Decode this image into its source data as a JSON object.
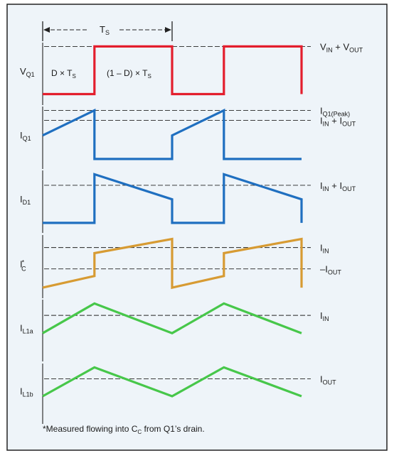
{
  "colors": {
    "background": "#eef4f9",
    "frame": "#222222",
    "vq1": "#e31e2d",
    "iq1": "#1f6fc0",
    "id1": "#1f6fc0",
    "icc": "#d79b33",
    "il1a": "#47c74a",
    "il1b": "#47c74a",
    "refline": "#222222"
  },
  "period": {
    "label": "T",
    "sub": "S"
  },
  "intervals": [
    {
      "pre": "D × T",
      "sub": "S"
    },
    {
      "pre": "(1 – D) × T",
      "sub": "S"
    }
  ],
  "footnote": {
    "pre": "*Measured flowing into C",
    "sub": "C",
    "post": " from Q1’s drain."
  },
  "panels": [
    {
      "key": "vq1",
      "label": {
        "main": "V",
        "sub": "Q1"
      },
      "refs": [
        {
          "y": 1,
          "text": "V<sub>IN</sub> + V<sub>OUT</sub>",
          "parts": [
            [
              "V",
              ""
            ],
            [
              "IN",
              "s"
            ],
            [
              " + V",
              ""
            ],
            [
              "OUT",
              "s"
            ]
          ]
        }
      ],
      "wave": [
        [
          0,
          0.05
        ],
        [
          0.4,
          0.05
        ],
        [
          0.4,
          1
        ],
        [
          1,
          1
        ],
        [
          1,
          0.05
        ],
        [
          1.4,
          0.05
        ],
        [
          1.4,
          1
        ],
        [
          2,
          1
        ],
        [
          2,
          0.05
        ]
      ]
    },
    {
      "key": "iq1",
      "label": {
        "main": "I",
        "sub": "Q1"
      },
      "refs": [
        {
          "y": 1,
          "parts": [
            [
              "I",
              ""
            ],
            [
              "Q1(Peak)",
              "s"
            ]
          ]
        },
        {
          "y": 0.8,
          "parts": [
            [
              "I",
              ""
            ],
            [
              "IN",
              "s"
            ],
            [
              " + I",
              ""
            ],
            [
              "OUT",
              "s"
            ]
          ]
        }
      ],
      "wave": [
        [
          0,
          0.5
        ],
        [
          0.4,
          1
        ],
        [
          0.4,
          0.03
        ],
        [
          1,
          0.03
        ],
        [
          1,
          0.5
        ],
        [
          1.4,
          1
        ],
        [
          1.4,
          0.03
        ],
        [
          2,
          0.03
        ]
      ]
    },
    {
      "key": "id1",
      "label": {
        "main": "I",
        "sub": "D1"
      },
      "refs": [
        {
          "y": 0.78,
          "parts": [
            [
              "I",
              ""
            ],
            [
              "IN",
              "s"
            ],
            [
              " + I",
              ""
            ],
            [
              "OUT",
              "s"
            ]
          ]
        }
      ],
      "wave": [
        [
          0,
          0.03
        ],
        [
          0.4,
          0.03
        ],
        [
          0.4,
          1
        ],
        [
          1,
          0.5
        ],
        [
          1,
          0.03
        ],
        [
          1.4,
          0.03
        ],
        [
          1.4,
          1
        ],
        [
          2,
          0.5
        ],
        [
          2,
          0.03
        ]
      ]
    },
    {
      "key": "icc",
      "label": {
        "main": "I",
        "sup": "*",
        "sub": "C"
      },
      "refs": [
        {
          "y": 0.83,
          "parts": [
            [
              "I",
              ""
            ],
            [
              "IN",
              "s"
            ]
          ]
        },
        {
          "y": 0.41,
          "parts": [
            [
              "–I",
              ""
            ],
            [
              "OUT",
              "s"
            ]
          ]
        }
      ],
      "wave": [
        [
          0,
          0.04
        ],
        [
          0.4,
          0.27
        ],
        [
          0.4,
          0.72
        ],
        [
          1,
          1
        ],
        [
          1,
          0.04
        ],
        [
          1.4,
          0.27
        ],
        [
          1.4,
          0.72
        ],
        [
          2,
          1
        ],
        [
          2,
          0.04
        ]
      ]
    },
    {
      "key": "il1a",
      "label": {
        "main": "I",
        "sub": "L1a"
      },
      "refs": [
        {
          "y": 0.76,
          "parts": [
            [
              "I",
              ""
            ],
            [
              "IN",
              "s"
            ]
          ]
        }
      ],
      "wave": [
        [
          0,
          0.4
        ],
        [
          0.4,
          1
        ],
        [
          1,
          0.4
        ],
        [
          1.4,
          1
        ],
        [
          2,
          0.4
        ]
      ]
    },
    {
      "key": "il1b",
      "label": {
        "main": "I",
        "sub": "L1b"
      },
      "refs": [
        {
          "y": 0.76,
          "parts": [
            [
              "I",
              ""
            ],
            [
              "OUT",
              "s"
            ]
          ]
        }
      ],
      "wave": [
        [
          0,
          0.4
        ],
        [
          0.4,
          1
        ],
        [
          1,
          0.4
        ],
        [
          1.4,
          1
        ],
        [
          2,
          0.4
        ]
      ]
    }
  ]
}
